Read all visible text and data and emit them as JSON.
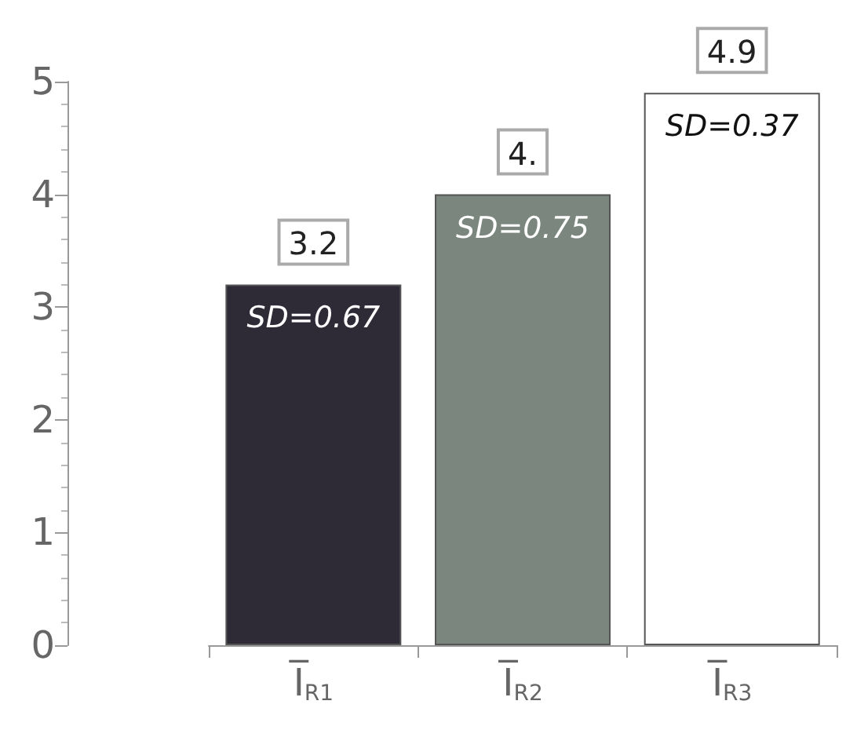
{
  "chart_data": {
    "type": "bar",
    "categories": [
      "I̅$_{R1}$",
      "I̅$_{R2}$",
      "I̅$_{R3}$"
    ],
    "values": [
      3.2,
      4,
      4.9
    ],
    "colors": [
      "#2e2b36",
      "#7b877e",
      "#ffffff"
    ],
    "value_labels": [
      "3.2",
      "4.",
      "4.9"
    ],
    "ylim": [
      0,
      5
    ],
    "yticks": [
      0,
      1,
      2,
      3,
      4,
      5
    ],
    "grid": false,
    "annotations": [
      {
        "text": "SD=0.67",
        "x": "I̅$_{R1}$",
        "y": 3.2
      },
      {
        "text": "SD=0.75",
        "x": "I̅$_{R2}$",
        "y": 4
      },
      {
        "text": "SD=0.37",
        "x": "I̅$_{R3}$",
        "y": 4.9
      }
    ]
  }
}
